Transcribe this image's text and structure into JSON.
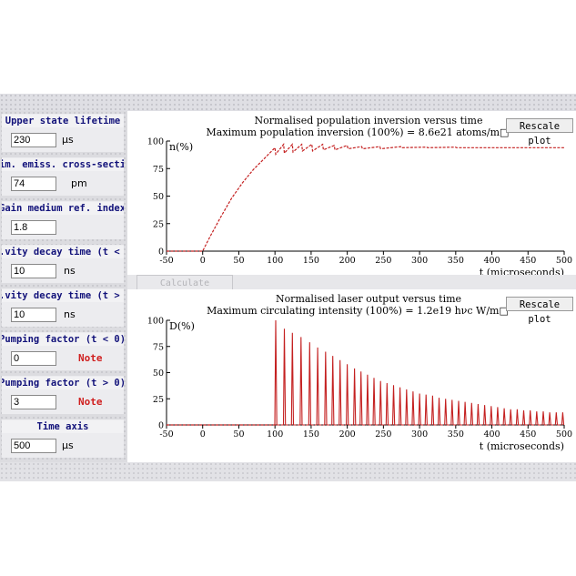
{
  "sidebar": {
    "upper_lifetime": {
      "label": "Upper state lifetime",
      "value": "230",
      "unit": "µs"
    },
    "cross_section": {
      "label": "im. emiss. cross-secti",
      "value": "74",
      "unit": "pm"
    },
    "ref_index": {
      "label": "Gain medium ref. index",
      "value": "1.8"
    },
    "decay_before": {
      "label": ".vity decay time (t < (",
      "value": "10",
      "unit": "ns"
    },
    "decay_after": {
      "label": ".vity decay time (t > (",
      "value": "10",
      "unit": "ns"
    },
    "pump_before": {
      "label": "Pumping factor (t < 0)",
      "value": "0",
      "note": "Note"
    },
    "pump_after": {
      "label": "Pumping factor (t > 0)",
      "value": "3",
      "note": "Note"
    },
    "time_axis": {
      "label": "Time axis",
      "value": "500",
      "unit": "µs"
    }
  },
  "calculate_label": "Calculate",
  "colors": {
    "trace": "#c42020",
    "axis": "#000000",
    "label_text": "#12127a",
    "note": "#d02020"
  },
  "chart_data": [
    {
      "type": "line",
      "title": "Normalised population inversion versus time",
      "subtitle": "Maximum population inversion (100%) = 8.6e21  atoms/m□",
      "ylabel": "n(%)",
      "xlabel": "t (microseconds)",
      "xlim": [
        -50,
        500
      ],
      "ylim": [
        0,
        100
      ],
      "xticks": [
        -50,
        0,
        50,
        100,
        150,
        200,
        250,
        300,
        350,
        400,
        450,
        500
      ],
      "yticks": [
        0,
        25,
        50,
        75,
        100
      ],
      "rescale_label": "Rescale plot",
      "series": [
        {
          "x": [
            -50,
            0,
            10,
            25,
            40,
            55,
            70,
            85,
            100,
            101,
            112,
            113,
            124,
            125,
            137,
            138,
            151,
            152,
            166,
            167,
            182,
            183,
            200,
            201,
            220,
            221,
            245,
            246,
            275,
            276,
            310,
            311,
            350,
            351,
            400,
            450,
            500
          ],
          "y": [
            0,
            0,
            13,
            31,
            48,
            62,
            74,
            84,
            94,
            88,
            97,
            89,
            97,
            90,
            97,
            91,
            97,
            91,
            97,
            92,
            96,
            92,
            96,
            93,
            95,
            93,
            95,
            93,
            95,
            94,
            94.5,
            94,
            94.5,
            94,
            94,
            94,
            94
          ]
        }
      ]
    },
    {
      "type": "line",
      "title": "Normalised laser output versus time",
      "subtitle": "Maximum circulating intensity (100%) = 1.2e19 hνc W/m□",
      "ylabel": "D(%)",
      "xlabel": "t (microseconds)",
      "xlim": [
        -50,
        500
      ],
      "ylim": [
        0,
        100
      ],
      "xticks": [
        -50,
        0,
        50,
        100,
        150,
        200,
        250,
        300,
        350,
        400,
        450,
        500
      ],
      "yticks": [
        0,
        25,
        50,
        75,
        100
      ],
      "rescale_label": "Rescale plot",
      "series": [
        {
          "peaks_x": [
            101,
            113,
            124,
            136,
            148,
            159,
            170,
            180,
            190,
            200,
            210,
            219,
            228,
            237,
            246,
            255,
            264,
            273,
            282,
            291,
            300,
            309,
            318,
            327,
            336,
            345,
            354,
            363,
            372,
            381,
            390,
            399,
            408,
            417,
            426,
            435,
            444,
            453,
            462,
            471,
            480,
            489,
            498
          ],
          "peaks_y": [
            100,
            92,
            88,
            84,
            79,
            74,
            70,
            66,
            62,
            58,
            54,
            51,
            48,
            45,
            42,
            40,
            38,
            36,
            34,
            32,
            30,
            29,
            28,
            26,
            25,
            24,
            23,
            22,
            21,
            20,
            19,
            18,
            17,
            16,
            15,
            15,
            14,
            14,
            13,
            13,
            12,
            12,
            12
          ],
          "baseline": 0
        }
      ]
    }
  ]
}
